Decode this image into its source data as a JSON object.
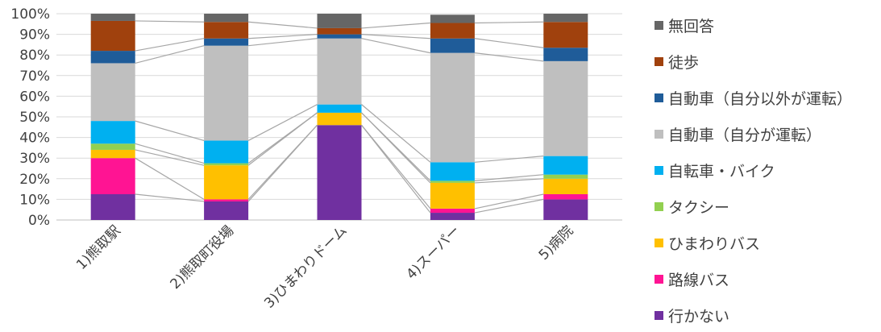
{
  "chart_data": {
    "type": "bar",
    "stacked": true,
    "percent": true,
    "categories": [
      "1)熊取駅",
      "2)熊取町役場",
      "3)ひまわりドーム",
      "4)スーパー",
      "5)病院"
    ],
    "ylim": [
      0,
      100
    ],
    "yticks": [
      "0%",
      "10%",
      "20%",
      "30%",
      "40%",
      "50%",
      "60%",
      "70%",
      "80%",
      "90%",
      "100%"
    ],
    "grid": true,
    "legend_position": "right",
    "series_lines": true,
    "series": [
      {
        "name": "行かない",
        "color": "#7030A0",
        "values": [
          12.5,
          9,
          46,
          3.5,
          10
        ]
      },
      {
        "name": "路線バス",
        "color": "#FF1493",
        "values": [
          17.5,
          1,
          0,
          2,
          2.5
        ]
      },
      {
        "name": "ひまわりバス",
        "color": "#FFC000",
        "values": [
          4,
          16.5,
          6,
          12.5,
          7.5
        ]
      },
      {
        "name": "タクシー",
        "color": "#92D050",
        "values": [
          3,
          1,
          0,
          1,
          2
        ]
      },
      {
        "name": "自転車・バイク",
        "color": "#00B0F0",
        "values": [
          11,
          11,
          4,
          9,
          9
        ]
      },
      {
        "name": "自動車（自分が運転）",
        "color": "#BFBFBF",
        "values": [
          28,
          46,
          32,
          53,
          46
        ]
      },
      {
        "name": "自動車（自分以外が運転）",
        "color": "#1F5C99",
        "values": [
          6,
          3.5,
          2,
          7,
          6.5
        ]
      },
      {
        "name": "徒歩",
        "color": "#A0410D",
        "values": [
          14.5,
          8,
          3,
          7.5,
          12.5
        ]
      },
      {
        "name": "無回答",
        "color": "#666666",
        "values": [
          3.5,
          4,
          7,
          4,
          4
        ]
      }
    ]
  }
}
